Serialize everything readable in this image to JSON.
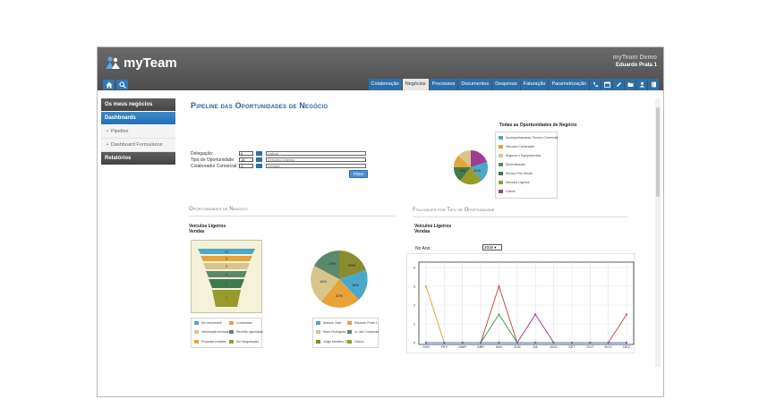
{
  "app": {
    "name": "myTeam",
    "demo_label": "myTeam Demo",
    "user_name": "Eduardo Prata 1"
  },
  "nav": {
    "tabs": [
      {
        "label": "Colaboração",
        "active": false
      },
      {
        "label": "Negócios",
        "active": true
      },
      {
        "label": "Processos",
        "active": false
      },
      {
        "label": "Documentos",
        "active": false
      },
      {
        "label": "Despesas",
        "active": false
      },
      {
        "label": "Faturação",
        "active": false
      },
      {
        "label": "Parametrização",
        "active": false
      }
    ],
    "icons": [
      "phone-icon",
      "calendar-icon",
      "edit-icon",
      "folder-icon",
      "user-icon",
      "book-icon"
    ]
  },
  "sidebar": {
    "header": "Os meus negócios",
    "section": "Dashboards",
    "items": [
      "Pipeline",
      "Dashboard Formulários"
    ],
    "footer": "Relatórios"
  },
  "page": {
    "title": "Pipeline das Oportunidades de Negócio"
  },
  "filters": {
    "rows": [
      {
        "label": "Delegação:",
        "id": "6",
        "desc": "Lisboa"
      },
      {
        "label": "Tipo de Oportunidade:",
        "id": "18",
        "desc": "Veículos Ligeiros"
      },
      {
        "label": "Colaborador Comercial:",
        "id": "4",
        "desc": "Vendas"
      }
    ],
    "button": "Filtrar"
  },
  "top_pie": {
    "title": "Todas as Oportunidades de Negócio",
    "legend": [
      {
        "label": "Acompanhamento Técnico Comercial",
        "color": "#4aa8c8"
      },
      {
        "label": "Veículos Comerciais",
        "color": "#e8a23a"
      },
      {
        "label": "Seguros e Equipamentos",
        "color": "#d9c48a"
      },
      {
        "label": "Diversificação",
        "color": "#5a8a6a"
      },
      {
        "label": "Serviço Pós-Venda",
        "color": "#3f7a4d"
      },
      {
        "label": "Veículos Ligeiros",
        "color": "#9a9a2a"
      },
      {
        "label": "Outros",
        "color": "#9b3f8f"
      }
    ],
    "slice_labels": [
      "31%",
      "6%"
    ]
  },
  "sections": {
    "left": "Oportunidades de Negócio",
    "right": "Followups por Tipo de Oportunidade"
  },
  "funnel": {
    "sub1": "Veículos Ligeiros",
    "sub2": "Vendas",
    "values": [
      "10",
      "4",
      "3",
      "3",
      "2",
      "1"
    ],
    "legend": [
      {
        "label": "Em reconstruir",
        "color": "#4aa8c8"
      },
      {
        "label": "Contactado",
        "color": "#e8a23a"
      },
      {
        "label": "Informação enviada",
        "color": "#d9c48a"
      },
      {
        "label": "Reunião agendada",
        "color": "#5a8a6a"
      },
      {
        "label": "Proposta enviada",
        "color": "#e8a23a"
      },
      {
        "label": "Em Negociação",
        "color": "#9a9a2a"
      }
    ]
  },
  "pie2": {
    "slice_labels": [
      "29%",
      "16%",
      "22%",
      "14%",
      "19%"
    ],
    "legend": [
      {
        "label": "António José",
        "color": "#4aa8c8"
      },
      {
        "label": "Eduardo Prata 1",
        "color": "#e8a23a"
      },
      {
        "label": "Nuno Rodrigues",
        "color": "#d9c48a"
      },
      {
        "label": "Jr. não Comercial",
        "color": "#5a8a6a"
      },
      {
        "label": "Jorge Monteiro Silva",
        "color": "#8b8b2f"
      },
      {
        "label": "Outros",
        "color": "#9a9a2a"
      }
    ]
  },
  "followups": {
    "sub1": "Veículos Ligeiros",
    "sub2": "Vendas",
    "year_label": "No Ano:",
    "year_value": "2016"
  },
  "chart_data": {
    "type": "line",
    "categories": [
      "JAN",
      "FEV",
      "MAR",
      "ABR",
      "MAI",
      "JUN",
      "JUL",
      "AGO",
      "SET",
      "OUT",
      "NOV",
      "DEZ"
    ],
    "ylim": [
      0,
      4
    ],
    "yticks": [
      "0",
      "1",
      "2",
      "3",
      "4"
    ],
    "grid": true,
    "series": [
      {
        "color": "#e8a23a",
        "values": [
          3,
          0,
          0,
          0,
          0,
          0,
          0,
          0,
          0,
          0,
          0,
          0
        ]
      },
      {
        "color": "#c0504d",
        "values": [
          0,
          0,
          0,
          0,
          3,
          0,
          0,
          0,
          0,
          0,
          0,
          1.5
        ]
      },
      {
        "color": "#3f9a5d",
        "values": [
          0,
          0,
          0,
          0,
          1.5,
          0,
          0,
          0,
          0,
          0,
          0,
          0
        ]
      },
      {
        "color": "#9b3f8f",
        "values": [
          0,
          0,
          0,
          0,
          0,
          0,
          1.5,
          0,
          0,
          0,
          0,
          0
        ]
      },
      {
        "color": "#4a7ac8",
        "values": [
          0,
          0,
          0,
          0,
          0,
          0,
          0,
          0,
          0,
          0,
          0,
          0
        ]
      }
    ]
  }
}
